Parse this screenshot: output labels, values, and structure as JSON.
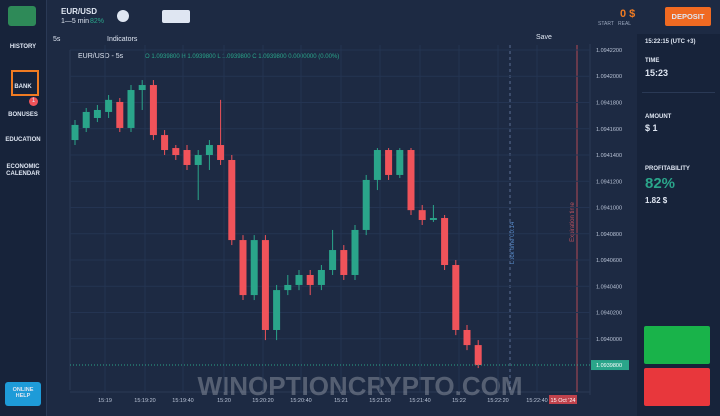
{
  "header": {
    "pair": "EUR/USD",
    "timeframe": "1—5 min",
    "payout": "82%",
    "balance": "0 $",
    "mode": "START",
    "account": "REAL",
    "deposit": "DEPOSIT"
  },
  "sidebar": {
    "items": [
      "HISTORY",
      "BANK",
      "BONUSES",
      "EDUCATION",
      "ECONOMIC CALENDAR"
    ],
    "badge": "1",
    "help": "ONLINE HELP"
  },
  "toolbar": {
    "interval": "5s",
    "indicators": "Indicators",
    "save": "Save"
  },
  "chart_data": {
    "type": "candlestick",
    "legend": "EUR/USD - 5s",
    "ohlc_text": "O 1.0939800  H 1.0939800  L 1.0939800  C 1.0939800  0.0000000 (0.00%)",
    "open": [
      1.0941514,
      1.0941606,
      1.0941682,
      1.0941728,
      1.0941804,
      1.0941606,
      1.0941895,
      1.0941933,
      1.0941552,
      1.0941453,
      1.0941438,
      1.0941324,
      1.09414,
      1.0941476,
      1.0941362,
      1.0940752,
      1.0940333,
      1.0940752,
      1.0940067,
      1.0940371,
      1.094041,
      1.0940486,
      1.094041,
      1.0940524,
      1.0940676,
      1.0940486,
      1.0940829,
      1.094121,
      1.0941438,
      1.0941248,
      1.0941438,
      1.094098,
      1.0940905,
      1.094092,
      1.0940562,
      1.0940067,
      1.0939952
    ],
    "high": [
      1.0941667,
      1.0941758,
      1.0941781,
      1.0941857,
      1.0941834,
      1.0941933,
      1.0941971,
      1.0941971,
      1.094159,
      1.0941476,
      1.0941476,
      1.0941438,
      1.0941514,
      1.094182,
      1.09414,
      1.094079,
      1.094079,
      1.094079,
      1.094041,
      1.0940486,
      1.0940524,
      1.0940524,
      1.0940562,
      1.0940829,
      1.0940714,
      1.0940867,
      1.0941248,
      1.0941453,
      1.0941453,
      1.0941453,
      1.0941453,
      1.0941019,
      1.0941019,
      1.0940943,
      1.09406,
      1.0940105,
      1.093999
    ],
    "low": [
      1.0941476,
      1.0941575,
      1.0941651,
      1.0941682,
      1.0941575,
      1.0941575,
      1.0941743,
      1.0941514,
      1.09414,
      1.0941362,
      1.0941286,
      1.0941057,
      1.0941286,
      1.0941324,
      1.0940714,
      1.0940295,
      1.0940295,
      1.093999,
      1.093999,
      1.0940333,
      1.0940371,
      1.0940333,
      1.0940371,
      1.0940486,
      1.0940448,
      1.0940448,
      1.094079,
      1.0941133,
      1.094121,
      1.0941225,
      1.0940943,
      1.0940867,
      1.094089,
      1.0940524,
      1.0940028,
      1.0939914,
      1.0939777
    ],
    "close": [
      1.0941629,
      1.0941728,
      1.0941743,
      1.094182,
      1.0941606,
      1.0941895,
      1.0941933,
      1.0941552,
      1.0941438,
      1.09414,
      1.0941324,
      1.09414,
      1.0941476,
      1.0941362,
      1.0940752,
      1.0940333,
      1.0940752,
      1.0940067,
      1.0940371,
      1.094041,
      1.0940486,
      1.094041,
      1.0940524,
      1.0940676,
      1.0940486,
      1.0940829,
      1.094121,
      1.0941438,
      1.0941248,
      1.0941438,
      1.094098,
      1.0940905,
      1.094092,
      1.0940562,
      1.0940067,
      1.0939952,
      1.09398
    ],
    "up_color": "#2aa58a",
    "down_color": "#f0535a",
    "ylim": [
      1.0939686,
      1.0942238
    ],
    "yticks": [
      {
        "value": 1.09422,
        "label": "1.0942200"
      },
      {
        "value": 1.0942,
        "label": "1.0942000"
      },
      {
        "value": 1.09418,
        "label": "1.0941800"
      },
      {
        "value": 1.09416,
        "label": "1.0941600"
      },
      {
        "value": 1.09414,
        "label": "1.0941400"
      },
      {
        "value": 1.09412,
        "label": "1.0941200"
      },
      {
        "value": 1.0941,
        "label": "1.0941000"
      },
      {
        "value": 1.09408,
        "label": "1.0940800"
      },
      {
        "value": 1.09406,
        "label": "1.0940600"
      },
      {
        "value": 1.09404,
        "label": "1.0940400"
      },
      {
        "value": 1.09402,
        "label": "1.0940200"
      },
      {
        "value": 1.094,
        "label": "1.0940000"
      }
    ],
    "current_price": {
      "value": 1.09398,
      "label": "1.0939800"
    },
    "x_labels": [
      "15:19",
      "15:19:20",
      "15:19:40",
      "15:20",
      "15:20:20",
      "15:20:40",
      "15:21",
      "15:21:20",
      "15:21:40",
      "15:22",
      "15:22:20",
      "15:22:40"
    ],
    "date_label": "15 Oct '24",
    "lock_time": "Lock time 00:14",
    "expiration": "Expiration time"
  },
  "panel": {
    "clock": "15:22:15 (UTC +3)",
    "time_label": "TIME",
    "time": "15:23",
    "amount_label": "AMOUNT",
    "amount": "$ 1",
    "profit_label": "PROFITABILITY",
    "profit": "82%",
    "payout": "1.82 $"
  },
  "watermark": "WINOPTIONCRYPTO.COM"
}
